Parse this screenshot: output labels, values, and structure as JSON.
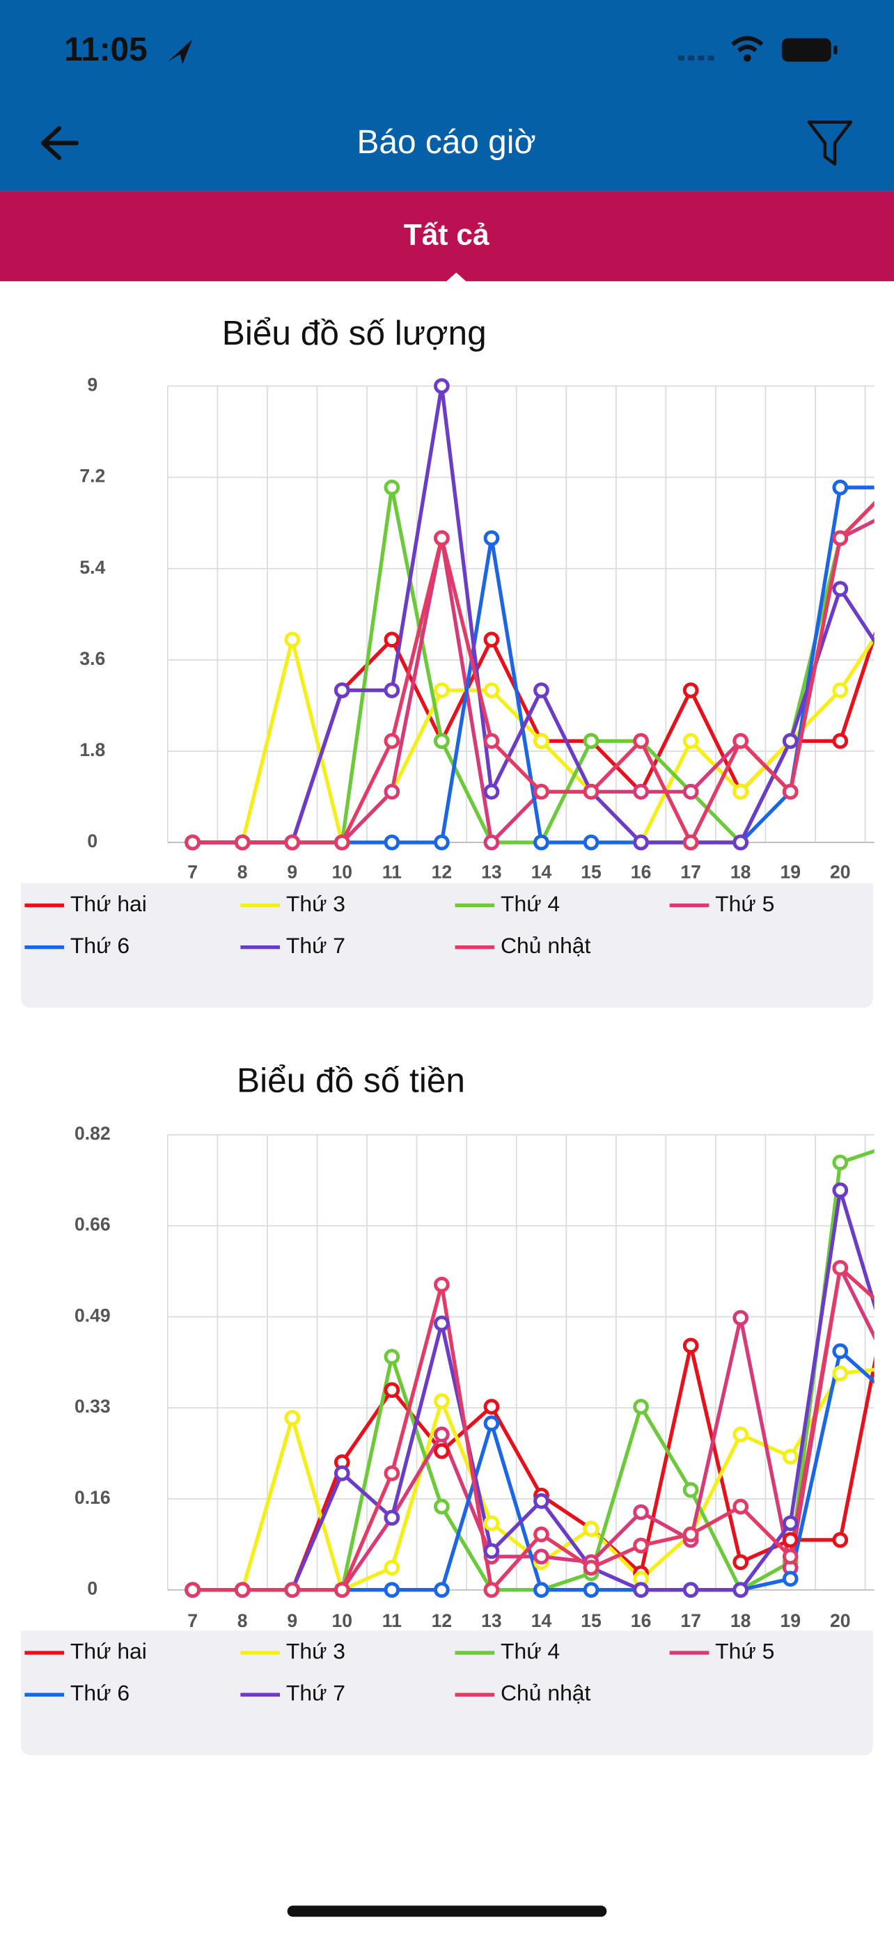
{
  "status_bar": {
    "time": "11:05"
  },
  "header": {
    "title": "Báo cáo giờ"
  },
  "tabs": [
    "Tất cả"
  ],
  "chart_data": [
    {
      "type": "line",
      "title": "Biểu đồ số lượng",
      "categories": [
        7,
        8,
        9,
        10,
        11,
        12,
        13,
        14,
        15,
        16,
        17,
        18,
        19,
        20,
        null
      ],
      "ylim": [
        0,
        9
      ],
      "yticks": [
        0,
        1.8,
        3.6,
        5.4,
        7.2,
        9
      ],
      "grid": true,
      "series": [
        {
          "name": "Thứ hai",
          "color": "#e8101a",
          "values": [
            0,
            0,
            0,
            3,
            4,
            2,
            4,
            2,
            2,
            1,
            3,
            1,
            2,
            2,
            5
          ]
        },
        {
          "name": "Thứ 3",
          "color": "#f5ef18",
          "values": [
            0,
            0,
            4,
            0,
            1,
            3,
            3,
            2,
            1,
            0,
            2,
            1,
            2,
            3,
            4.5
          ]
        },
        {
          "name": "Thứ 4",
          "color": "#6cc93a",
          "values": [
            0,
            0,
            0,
            0,
            7,
            2,
            0,
            0,
            2,
            2,
            1,
            0,
            2,
            6,
            7
          ]
        },
        {
          "name": "Thứ 5",
          "color": "#d83a78",
          "values": [
            0,
            0,
            0,
            0,
            1,
            6,
            0,
            1,
            1,
            1,
            1,
            2,
            1,
            6,
            6.5
          ]
        },
        {
          "name": "Thứ 6",
          "color": "#1a66e6",
          "values": [
            0,
            0,
            0,
            0,
            0,
            0,
            6,
            0,
            0,
            0,
            0,
            0,
            1,
            7,
            7
          ]
        },
        {
          "name": "Thứ 7",
          "color": "#6b3cc8",
          "values": [
            0,
            0,
            0,
            3,
            3,
            9,
            1,
            3,
            1,
            0,
            0,
            0,
            2,
            5,
            3.5
          ]
        },
        {
          "name": "Chủ nhật",
          "color": "#e23b66",
          "values": [
            0,
            0,
            0,
            0,
            2,
            6,
            2,
            1,
            1,
            2,
            0,
            2,
            1,
            6,
            7
          ]
        }
      ]
    },
    {
      "type": "line",
      "title": "Biểu đồ số tiền",
      "categories": [
        7,
        8,
        9,
        10,
        11,
        12,
        13,
        14,
        15,
        16,
        17,
        18,
        19,
        20,
        null
      ],
      "ylim": [
        0,
        0.82
      ],
      "yticks": [
        0,
        {
          "value": 0.164,
          "label": "0.16"
        },
        {
          "value": 0.328,
          "label": "0.33"
        },
        {
          "value": 0.492,
          "label": "0.49"
        },
        {
          "value": 0.656,
          "label": "0.66"
        },
        0.82
      ],
      "grid": true,
      "series": [
        {
          "name": "Thứ hai",
          "color": "#e8101a",
          "values": [
            0,
            0,
            0,
            0.23,
            0.36,
            0.25,
            0.33,
            0.17,
            0.11,
            0.03,
            0.44,
            0.05,
            0.09,
            0.09,
            0.55
          ]
        },
        {
          "name": "Thứ 3",
          "color": "#f5ef18",
          "values": [
            0,
            0,
            0.31,
            0,
            0.04,
            0.34,
            0.12,
            0.05,
            0.11,
            0.02,
            0.1,
            0.28,
            0.24,
            0.39,
            0.4
          ]
        },
        {
          "name": "Thứ 4",
          "color": "#6cc93a",
          "values": [
            0,
            0,
            0,
            0,
            0.42,
            0.15,
            0,
            0,
            0.03,
            0.33,
            0.18,
            0,
            0.05,
            0.77,
            0.8
          ]
        },
        {
          "name": "Thứ 5",
          "color": "#d83a78",
          "values": [
            0,
            0,
            0,
            0,
            0.13,
            0.28,
            0.06,
            0.06,
            0.05,
            0.14,
            0.09,
            0.49,
            0.04,
            0.58,
            0.4
          ]
        },
        {
          "name": "Thứ 6",
          "color": "#1a66e6",
          "values": [
            0,
            0,
            0,
            0,
            0,
            0,
            0.3,
            0,
            0,
            0,
            0,
            0,
            0.02,
            0.43,
            0.35
          ]
        },
        {
          "name": "Thứ 7",
          "color": "#6b3cc8",
          "values": [
            0,
            0,
            0,
            0.21,
            0.13,
            0.48,
            0.07,
            0.16,
            0.04,
            0,
            0,
            0,
            0.12,
            0.72,
            0.42
          ]
        },
        {
          "name": "Chủ nhật",
          "color": "#e23b66",
          "values": [
            0,
            0,
            0,
            0,
            0.21,
            0.55,
            0,
            0.1,
            0.04,
            0.08,
            0.1,
            0.15,
            0.06,
            0.58,
            0.5
          ]
        }
      ]
    }
  ]
}
